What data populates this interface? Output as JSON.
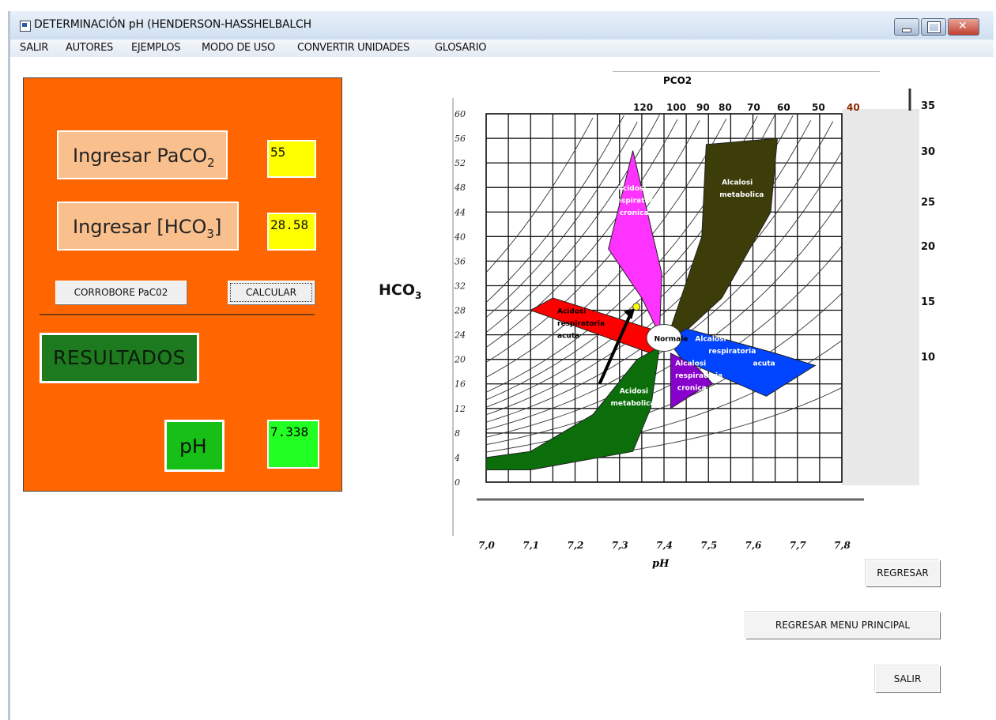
{
  "window": {
    "title": "DETERMINACIÓN pH (HENDERSON-HASSHELBALCH",
    "controls": {
      "minimize": "minimize-icon",
      "maximize": "maximize-icon",
      "close": "close-icon"
    }
  },
  "menu": [
    "SALIR",
    "AUTORES",
    "EJEMPLOS",
    "MODO DE USO",
    "CONVERTIR UNIDADES",
    "GLOSARIO"
  ],
  "form": {
    "paco2_label": "Ingresar PaCO",
    "paco2_sub": "2",
    "paco2_value": "55",
    "hco3_label": "Ingresar [HCO",
    "hco3_sub": "3",
    "hco3_close": "]",
    "hco3_value": "28.58",
    "corrobore_button": "CORROBORE PaC02",
    "calcular_button": "CALCULAR",
    "results_label": "RESULTADOS",
    "ph_label": "pH",
    "ph_value": "7.338"
  },
  "chart_data": {
    "type": "nomogram",
    "title": "PCO2",
    "ylabel": "HCO",
    "ylabel_sub": "3",
    "xlabel": "pH",
    "x_ticks": [
      "7,0",
      "7,1",
      "7,2",
      "7,3",
      "7,4",
      "7,5",
      "7,6",
      "7,7",
      "7,8"
    ],
    "y_ticks": [
      "60",
      "56",
      "52",
      "48",
      "44",
      "40",
      "36",
      "32",
      "28",
      "24",
      "20",
      "16",
      "12",
      "8",
      "4",
      "0"
    ],
    "pco2_ticks": [
      "120",
      "100",
      "90",
      "80",
      "70",
      "60",
      "50",
      "40"
    ],
    "right_ticks": [
      "35",
      "30",
      "25",
      "20",
      "15",
      "10"
    ],
    "xlim": [
      7.0,
      7.8
    ],
    "ylim": [
      0,
      60
    ],
    "regions": [
      {
        "name": "Acidosi respiratoria cronica",
        "color": "#ff33ff"
      },
      {
        "name": "Alcalosi metabolica",
        "color": "#3d3d0a"
      },
      {
        "name": "Acidosi respiratoria acuta",
        "color": "#ff0000"
      },
      {
        "name": "Normale",
        "color": "#ffffff"
      },
      {
        "name": "Alcalosi respiratoria acuta",
        "color": "#0044ff"
      },
      {
        "name": "Alcalosi respiratoria cronica",
        "color": "#8800cc"
      },
      {
        "name": "Acidosi metabolica",
        "color": "#0b6e0b"
      }
    ],
    "marker": {
      "pH": 7.338,
      "HCO3": 28.58,
      "color": "#ffff00"
    }
  },
  "buttons": {
    "regresar": "REGRESAR",
    "regresar_menu": "REGRESAR MENU PRINCIPAL",
    "salir": "SALIR"
  }
}
